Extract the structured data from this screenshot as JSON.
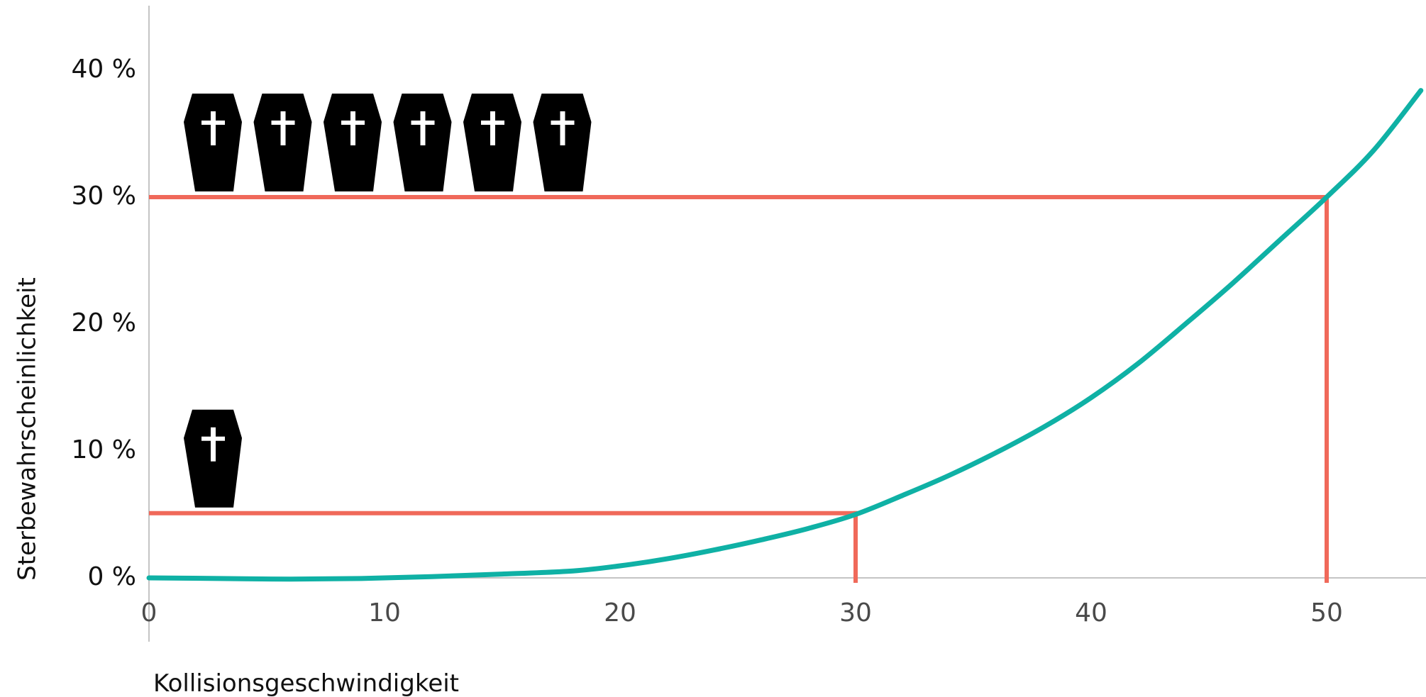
{
  "chart_data": {
    "type": "line",
    "title": "",
    "xlabel": "Kollisionsgeschwindigkeit",
    "ylabel": "Sterbewahrscheinlichkeit",
    "xlim": [
      0,
      54
    ],
    "ylim": [
      0,
      45
    ],
    "x_ticks": [
      0,
      10,
      20,
      30,
      40,
      50
    ],
    "x_tick_labels": [
      "0",
      "10",
      "20",
      "30",
      "40",
      "50"
    ],
    "y_ticks": [
      0,
      10,
      20,
      30,
      40
    ],
    "y_tick_labels": [
      "0 %",
      "10 %",
      "20 %",
      "30 %",
      "40 %"
    ],
    "grid": false,
    "series": [
      {
        "color": "#0fb1a5",
        "x": [
          0,
          3,
          6,
          9,
          12,
          15,
          18,
          20,
          22,
          24,
          26,
          28,
          30,
          32,
          34,
          36,
          38,
          40,
          42,
          44,
          46,
          48,
          50,
          52,
          54
        ],
        "y": [
          0.0,
          -0.05,
          -0.1,
          -0.05,
          0.1,
          0.3,
          0.55,
          0.95,
          1.5,
          2.2,
          3.0,
          3.9,
          5.0,
          6.5,
          8.1,
          9.9,
          11.9,
          14.2,
          16.9,
          20.0,
          23.2,
          26.6,
          30.0,
          33.7,
          38.4
        ]
      }
    ],
    "reference_lines": [
      {
        "x": 30,
        "y": 5.1,
        "color": "#f0695a"
      },
      {
        "x": 50,
        "y": 30,
        "color": "#f0695a"
      }
    ],
    "pictograms": [
      {
        "icon": "coffin-icon",
        "count": 1,
        "probability": 5.1
      },
      {
        "icon": "coffin-icon",
        "count": 6,
        "probability": 30
      }
    ]
  }
}
